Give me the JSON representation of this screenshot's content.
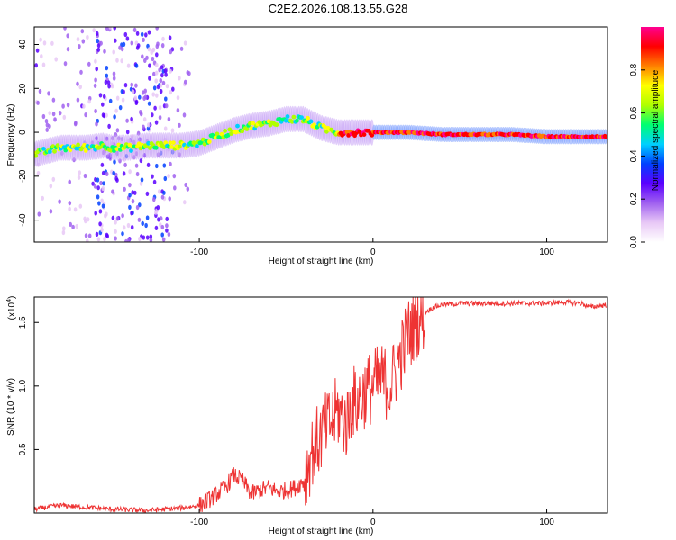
{
  "title": "C2E2.2026.108.13.55.G28",
  "chart_data": [
    {
      "type": "heatmap",
      "name": "spectrogram",
      "xlabel": "Height of straight line (km)",
      "ylabel": "Frequency (Hz)",
      "xlim": [
        -195,
        135
      ],
      "ylim": [
        -50,
        48
      ],
      "xticks": [
        -100,
        0,
        100
      ],
      "yticks": [
        -40,
        -20,
        0,
        20,
        40
      ],
      "ridge": {
        "x": [
          -195,
          -180,
          -165,
          -155,
          -150,
          -140,
          -130,
          -120,
          -110,
          -100,
          -90,
          -80,
          -70,
          -60,
          -50,
          -40,
          -35,
          -30,
          -25,
          -20,
          -15,
          -10,
          0,
          10,
          20,
          40,
          60,
          80,
          100,
          120,
          135
        ],
        "freq": [
          -10,
          -7,
          -7,
          -6,
          -7,
          -7,
          -6,
          -6,
          -6,
          -5,
          -2,
          1,
          3,
          4,
          6,
          6,
          4,
          2,
          1,
          0,
          0,
          0,
          0,
          0,
          0,
          -1,
          -1,
          -1,
          -2,
          -2,
          -2
        ]
      },
      "colorbar": {
        "label": "Normalized spectral amplitude",
        "range": [
          0,
          1
        ],
        "ticks": [
          0.0,
          0.2,
          0.4,
          0.6,
          0.8
        ],
        "tick_labels": [
          "0.0",
          "0.2",
          "0.4",
          "0.6",
          "0.8"
        ],
        "colors": [
          "#ffffff",
          "#e8c8f6",
          "#a060f0",
          "#5a00ff",
          "#0040ff",
          "#00d0ff",
          "#00ff70",
          "#b0ff00",
          "#ffff00",
          "#ff8000",
          "#ff0000",
          "#ff0090"
        ]
      }
    },
    {
      "type": "line",
      "name": "snr",
      "xlabel": "Height of straight line (km)",
      "ylabel": "SNR (10 * v/v)",
      "scale_label": "(x10",
      "scale_exp": "4",
      "xlim": [
        -195,
        135
      ],
      "ylim": [
        0,
        1.7
      ],
      "xticks": [
        -100,
        0,
        100
      ],
      "yticks": [
        0.5,
        1.0,
        1.5
      ],
      "color": "#ee3333",
      "x": [
        -195,
        -180,
        -170,
        -150,
        -130,
        -120,
        -110,
        -100,
        -95,
        -90,
        -85,
        -80,
        -75,
        -70,
        -65,
        -60,
        -55,
        -50,
        -45,
        -40,
        -35,
        -30,
        -25,
        -20,
        -15,
        -12,
        -10,
        -5,
        0,
        5,
        10,
        15,
        20,
        25,
        30,
        35,
        40,
        50,
        60,
        80,
        100,
        110,
        120,
        125,
        135
      ],
      "y": [
        0.03,
        0.06,
        0.05,
        0.03,
        0.02,
        0.03,
        0.04,
        0.06,
        0.1,
        0.15,
        0.2,
        0.3,
        0.25,
        0.15,
        0.18,
        0.2,
        0.17,
        0.18,
        0.2,
        0.25,
        0.5,
        0.6,
        0.7,
        0.8,
        0.7,
        0.9,
        0.85,
        0.95,
        1.0,
        1.05,
        1.0,
        1.2,
        1.4,
        1.5,
        1.58,
        1.62,
        1.64,
        1.65,
        1.65,
        1.65,
        1.65,
        1.66,
        1.65,
        1.62,
        1.64
      ]
    }
  ]
}
